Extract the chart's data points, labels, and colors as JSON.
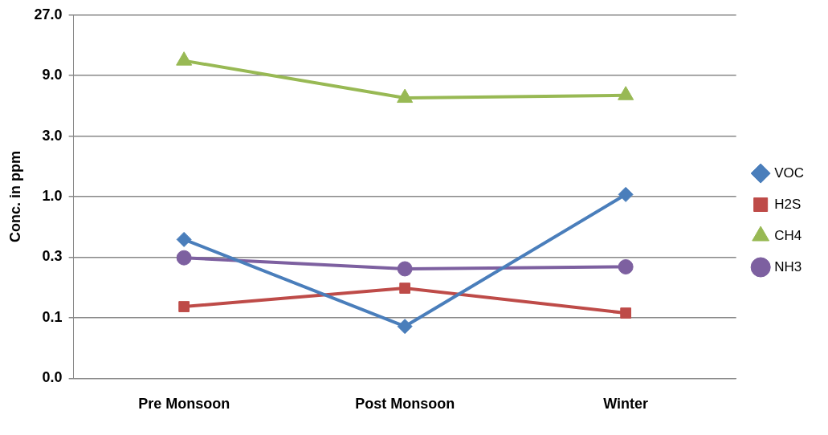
{
  "chart_data": {
    "type": "line",
    "ylabel": "Conc. in ppm",
    "categories": [
      "Pre Monsoon",
      "Post Monsoon",
      "Winter"
    ],
    "series": [
      {
        "name": "VOC",
        "color": "#4a7ebb",
        "marker": "diamond",
        "values": [
          0.46,
          0.095,
          1.04
        ]
      },
      {
        "name": "H2S",
        "color": "#be4b48",
        "marker": "square",
        "values": [
          0.136,
          0.19,
          0.121
        ]
      },
      {
        "name": "CH4",
        "color": "#98b954",
        "marker": "triangle",
        "values": [
          11.8,
          6.0,
          6.3
        ]
      },
      {
        "name": "NH3",
        "color": "#7d60a0",
        "marker": "circle",
        "values": [
          0.33,
          0.27,
          0.28
        ]
      }
    ],
    "log": "y",
    "ylim": [
      0.037,
      27
    ],
    "yticks": [
      {
        "value": 0.037,
        "label": "0.0"
      },
      {
        "value": 0.1111,
        "label": "0.1"
      },
      {
        "value": 0.3333,
        "label": "0.3"
      },
      {
        "value": 1,
        "label": "1.0"
      },
      {
        "value": 3,
        "label": "3.0"
      },
      {
        "value": 9,
        "label": "9.0"
      },
      {
        "value": 27,
        "label": "27.0"
      }
    ],
    "grid": "y",
    "legend": "right",
    "line_style": "solid"
  }
}
